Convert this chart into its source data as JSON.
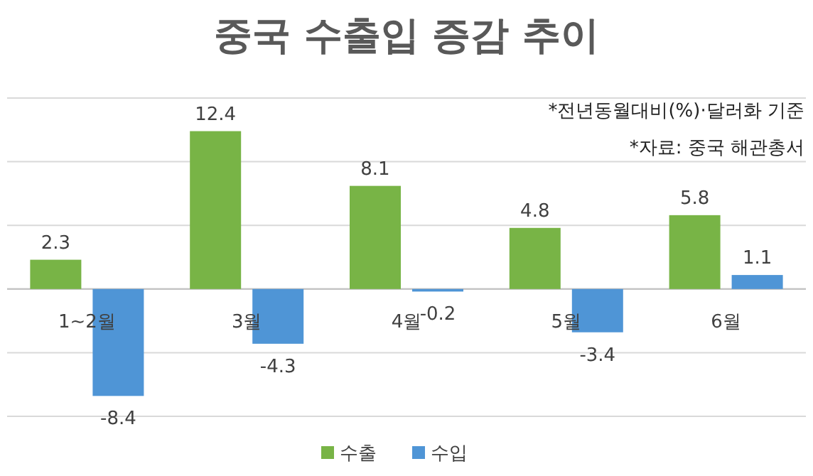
{
  "chart_data": {
    "type": "bar",
    "title": "중국 수출입 증감 추이",
    "categories": [
      "1~2월",
      "3월",
      "4월",
      "5월",
      "6월"
    ],
    "series": [
      {
        "name": "수출",
        "color": "#78b446",
        "values": [
          2.3,
          12.4,
          8.1,
          4.8,
          5.8
        ]
      },
      {
        "name": "수입",
        "color": "#4f95d6",
        "values": [
          -8.4,
          -4.3,
          -0.2,
          -3.4,
          1.1
        ]
      }
    ],
    "ylim": [
      -10,
      15
    ],
    "yticks": [
      {
        "value": -10,
        "label": null
      },
      {
        "value": -5,
        "label": null
      },
      {
        "value": 0,
        "label": null
      },
      {
        "value": 5,
        "label": null
      },
      {
        "value": 10,
        "label": null
      },
      {
        "value": 15,
        "label": null
      }
    ],
    "tick_labels": "x",
    "grid": "y",
    "legend": "bottom",
    "data_labels": true,
    "annotations": [
      "*전년동월대비(%)·달러화 기준",
      "*자료: 중국 해관총서"
    ]
  }
}
